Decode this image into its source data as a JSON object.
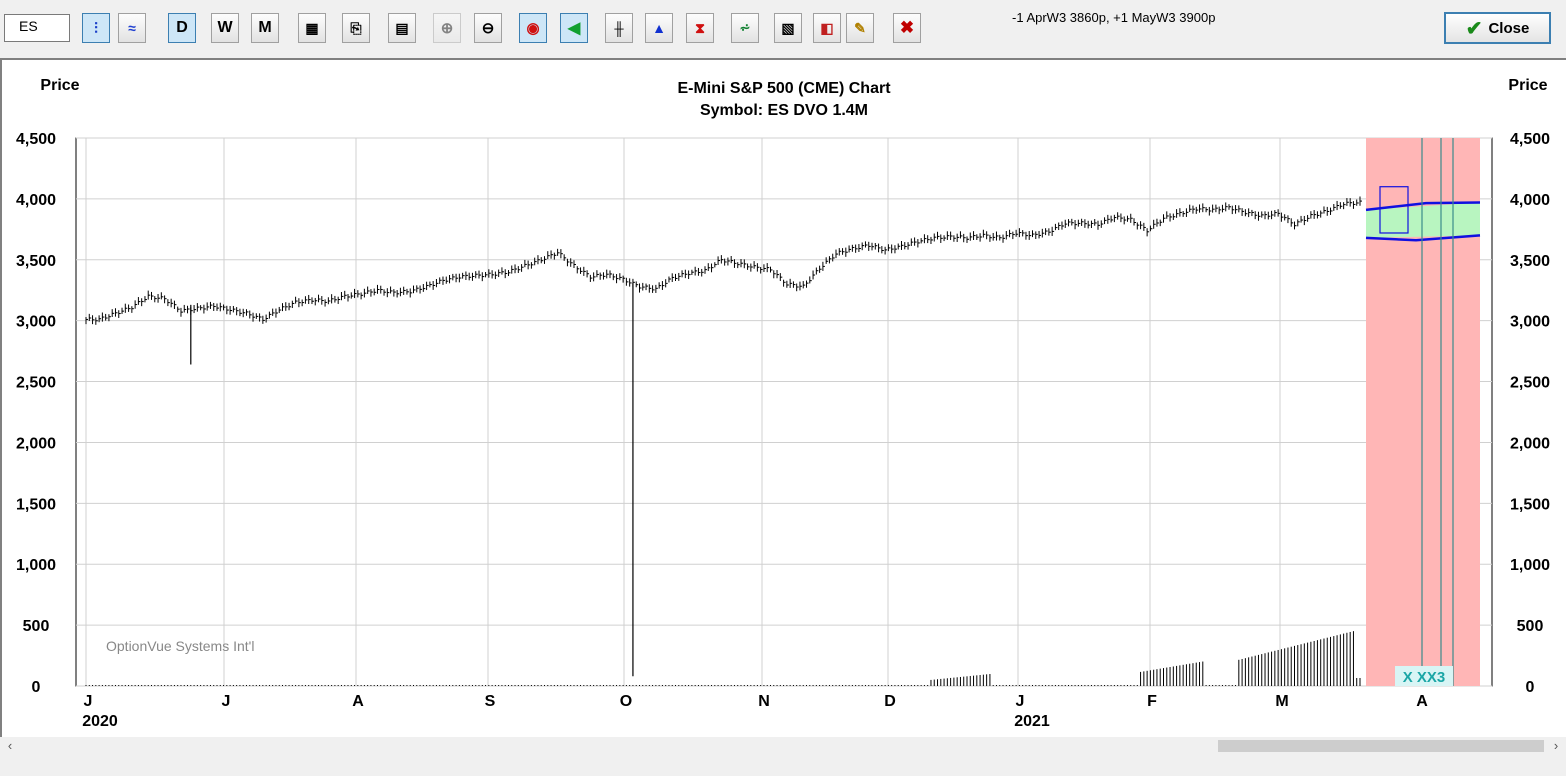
{
  "toolbar": {
    "symbol_value": "ES",
    "period_buttons": {
      "daily": "D",
      "weekly": "W",
      "monthly": "M"
    },
    "position_text": "-1 AprW3 3860p, +1 MayW3 3900p",
    "close_label": "Close"
  },
  "colors": {
    "bars": "#000000",
    "projection_bg": "#ffb6b6",
    "projection_band": "#b8f5c0",
    "projection_line": "#1010e0",
    "expiration_line": "#3a8c8c",
    "expiration_label": "#1aa6a6"
  },
  "chart_data": {
    "type": "ohlc",
    "title": "E-Mini S&P 500 (CME) Chart",
    "subtitle": "Symbol: ES  DVO 1.4M",
    "ylabel_left": "Price",
    "ylabel_right": "Price",
    "ylim": [
      0,
      4500
    ],
    "yticks": [
      "4,500",
      "4,000",
      "3,500",
      "3,000",
      "2,500",
      "2,000",
      "1,500",
      "1,000",
      "500",
      "0"
    ],
    "ytick_values": [
      4500,
      4000,
      3500,
      3000,
      2500,
      2000,
      1500,
      1000,
      500,
      0
    ],
    "grid": true,
    "x_months": [
      {
        "label": "J",
        "year": "2020"
      },
      {
        "label": "J",
        "year": ""
      },
      {
        "label": "A",
        "year": ""
      },
      {
        "label": "S",
        "year": ""
      },
      {
        "label": "O",
        "year": ""
      },
      {
        "label": "N",
        "year": ""
      },
      {
        "label": "D",
        "year": ""
      },
      {
        "label": "J",
        "year": "2021"
      },
      {
        "label": "F",
        "year": ""
      },
      {
        "label": "M",
        "year": ""
      },
      {
        "label": "A",
        "year": ""
      }
    ],
    "weekly_closes": [
      3010,
      3060,
      3110,
      3200,
      3180,
      3080,
      3100,
      3120,
      3090,
      3060,
      3010,
      3090,
      3150,
      3170,
      3160,
      3200,
      3220,
      3250,
      3230,
      3240,
      3280,
      3330,
      3360,
      3370,
      3380,
      3400,
      3450,
      3500,
      3560,
      3450,
      3360,
      3380,
      3340,
      3280,
      3260,
      3350,
      3390,
      3410,
      3500,
      3470,
      3440,
      3420,
      3300,
      3280,
      3430,
      3550,
      3590,
      3620,
      3580,
      3610,
      3650,
      3680,
      3690,
      3680,
      3700,
      3680,
      3720,
      3700,
      3730,
      3800,
      3800,
      3790,
      3850,
      3830,
      3740,
      3840,
      3880,
      3920,
      3910,
      3930,
      3890,
      3860,
      3880,
      3790,
      3860,
      3900,
      3960,
      3970
    ],
    "outlier_lows": [
      {
        "week": 6,
        "low": 2640
      },
      {
        "week": 33,
        "low": 80
      }
    ],
    "volume_label": "OptionVue Systems Int'l",
    "projection": {
      "upper_band": [
        3910,
        3970
      ],
      "lower_band": [
        3680,
        3700
      ],
      "expiration_label": "X XX3"
    }
  }
}
